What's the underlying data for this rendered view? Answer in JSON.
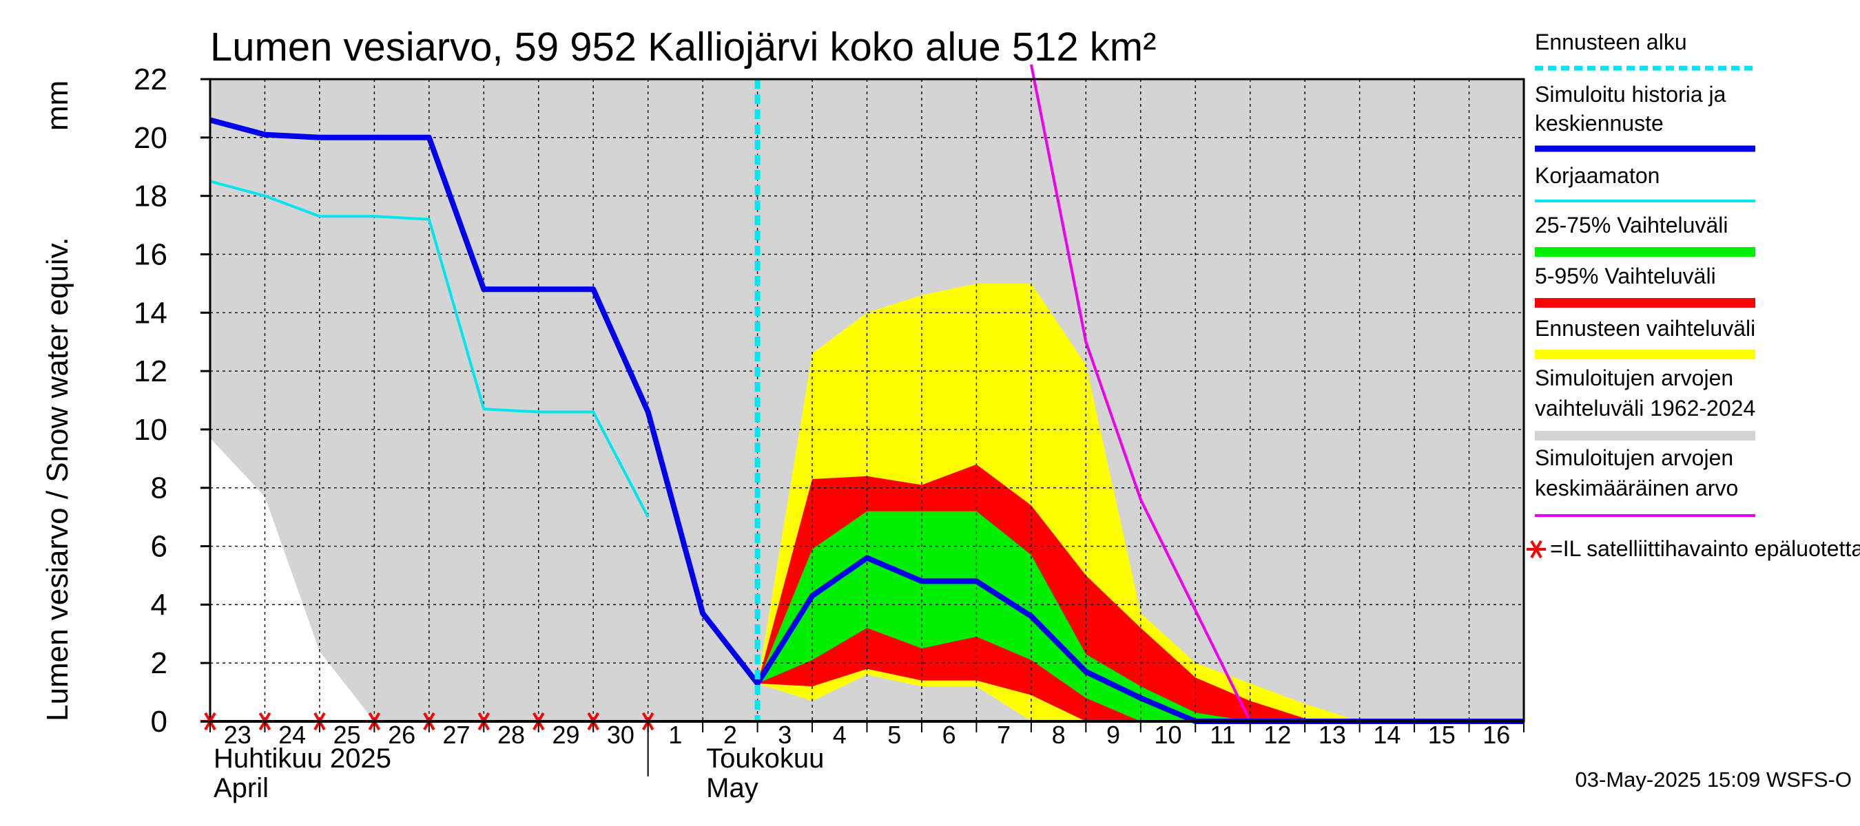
{
  "chart_data": {
    "type": "area",
    "title": "Lumen vesiarvo, 59 952 Kalliojärvi koko alue 512 km²",
    "ylabel": "Lumen vesiarvo / Snow water equiv.",
    "yunit": "mm",
    "ylim": [
      0,
      22
    ],
    "yticks": [
      0,
      2,
      4,
      6,
      8,
      10,
      12,
      14,
      16,
      18,
      20,
      22
    ],
    "grid": true,
    "x_dates": [
      "2025-04-23",
      "2025-04-24",
      "2025-04-25",
      "2025-04-26",
      "2025-04-27",
      "2025-04-28",
      "2025-04-29",
      "2025-04-30",
      "2025-05-01",
      "2025-05-02",
      "2025-05-03",
      "2025-05-04",
      "2025-05-05",
      "2025-05-06",
      "2025-05-07",
      "2025-05-08",
      "2025-05-09",
      "2025-05-10",
      "2025-05-11",
      "2025-05-12",
      "2025-05-13",
      "2025-05-14",
      "2025-05-15",
      "2025-05-16",
      "2025-05-17"
    ],
    "xtick_labels": [
      "23",
      "24",
      "25",
      "26",
      "27",
      "28",
      "29",
      "30",
      "1",
      "2",
      "3",
      "4",
      "5",
      "6",
      "7",
      "8",
      "9",
      "10",
      "11",
      "12",
      "13",
      "14",
      "15",
      "16"
    ],
    "month_labels": [
      {
        "date": "2025-04-23",
        "fi": "Huhtikuu  2025",
        "en": "April"
      },
      {
        "date": "2025-05-01",
        "fi": "Toukokuu",
        "en": "May"
      }
    ],
    "forecast_start": "2025-05-03",
    "bands": {
      "historical_range": {
        "lower": [
          9.7,
          7.7,
          2.4,
          0,
          0,
          0,
          0,
          0,
          0,
          0,
          0,
          0,
          0,
          0,
          0,
          0,
          0,
          0,
          0,
          0,
          0,
          0,
          0,
          0,
          0
        ],
        "upper": [
          22,
          22,
          22,
          22,
          22,
          22,
          22,
          22,
          22,
          22,
          22,
          22,
          22,
          22,
          22,
          22,
          22,
          22,
          22,
          22,
          22,
          22,
          22,
          22,
          22
        ]
      },
      "forecast_range": {
        "x_start": 10,
        "lower": [
          1.3,
          0.7,
          1.6,
          1.2,
          1.2,
          0,
          0,
          0,
          0,
          0,
          0,
          0,
          0,
          0,
          0
        ],
        "upper": [
          1.3,
          12.6,
          14.0,
          14.6,
          15.0,
          15.0,
          12.2,
          3.7,
          2.0,
          1.3,
          0.6,
          0,
          0,
          0,
          0
        ]
      },
      "p5_95": {
        "x_start": 10,
        "lower": [
          1.3,
          1.2,
          1.8,
          1.4,
          1.4,
          0.9,
          0,
          0,
          0,
          0,
          0,
          0,
          0,
          0,
          0
        ],
        "upper": [
          1.3,
          8.3,
          8.4,
          8.1,
          8.8,
          7.4,
          5.0,
          3.2,
          1.5,
          0.7,
          0.1,
          0,
          0,
          0,
          0
        ]
      },
      "p25_75": {
        "x_start": 10,
        "lower": [
          1.3,
          2.1,
          3.2,
          2.5,
          2.9,
          2.1,
          0.8,
          0,
          0,
          0,
          0,
          0,
          0,
          0,
          0
        ],
        "upper": [
          1.3,
          5.9,
          7.2,
          7.2,
          7.2,
          5.7,
          2.3,
          1.2,
          0.3,
          0,
          0,
          0,
          0,
          0,
          0
        ]
      }
    },
    "series": [
      {
        "name": "Simuloitu historia ja keskiennuste",
        "x_start": 0,
        "values": [
          20.6,
          20.1,
          20.0,
          20.0,
          20.0,
          14.8,
          14.8,
          14.8,
          10.6,
          3.7,
          1.3,
          4.3,
          5.6,
          4.8,
          4.8,
          3.6,
          1.7,
          0.8,
          0,
          0,
          0,
          0,
          0,
          0,
          0
        ]
      },
      {
        "name": "Korjaamaton",
        "x_start": 0,
        "values": [
          18.5,
          18.0,
          17.3,
          17.3,
          17.2,
          10.7,
          10.6,
          10.6,
          7.0
        ]
      },
      {
        "name": "Simuloitujen arvojen keskimääräinen arvo",
        "x_start": 15,
        "values": [
          22.5,
          13.0,
          7.6,
          3.8,
          0,
          0,
          0,
          0,
          0,
          0
        ]
      }
    ],
    "satellite_obs_x": [
      0,
      1,
      2,
      3,
      4,
      5,
      6,
      7,
      8
    ],
    "colors": {
      "history": "#0000ee",
      "uncorrected": "#00e5ee",
      "p25_75": "#00ee00",
      "p5_95": "#ff0000",
      "forecast_range": "#ffff00",
      "historical_range": "#d4d4d4",
      "mean": "#ee00ee",
      "forecast_start": "#00e5ee",
      "obs_marker": "#ff0000"
    },
    "legend_position": "right",
    "legend": [
      {
        "label": "Ennusteen alku",
        "style": "dashed",
        "color": "#00e5ee"
      },
      {
        "label": "Simuloitu historia ja keskiennuste",
        "style": "thick",
        "color": "#0000ee"
      },
      {
        "label": "Korjaamaton",
        "style": "line",
        "color": "#00e5ee"
      },
      {
        "label": "25-75% Vaihteluväli",
        "style": "band",
        "color": "#00ee00"
      },
      {
        "label": "5-95% Vaihteluväli",
        "style": "band",
        "color": "#ff0000"
      },
      {
        "label": "Ennusteen vaihteluväli",
        "style": "band",
        "color": "#ffff00"
      },
      {
        "label": "Simuloitujen arvojen vaihteluväli 1962-2024",
        "style": "band",
        "color": "#d4d4d4"
      },
      {
        "label": "Simuloitujen arvojen keskimääräinen arvo",
        "style": "line",
        "color": "#ee00ee"
      },
      {
        "label": "=IL satelliittihavainto epäluotettava",
        "style": "star",
        "color": "#ff0000"
      }
    ],
    "footer": "03-May-2025 15:09 WSFS-O"
  }
}
